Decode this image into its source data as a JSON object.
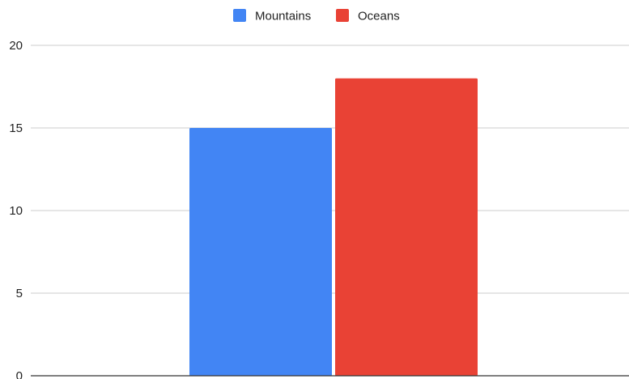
{
  "chart_data": {
    "type": "bar",
    "title": "",
    "xlabel": "",
    "ylabel": "",
    "categories": [
      ""
    ],
    "series": [
      {
        "name": "Mountains",
        "values": [
          15
        ],
        "color": "#4285F4"
      },
      {
        "name": "Oceans",
        "values": [
          18
        ],
        "color": "#E94235"
      }
    ],
    "ylim": [
      0,
      20
    ],
    "yticks": [
      0,
      5,
      10,
      15,
      20
    ],
    "grid": true,
    "legend_position": "top-center",
    "gridline_color": "#CCCCCC",
    "axis_color": "#333333"
  }
}
